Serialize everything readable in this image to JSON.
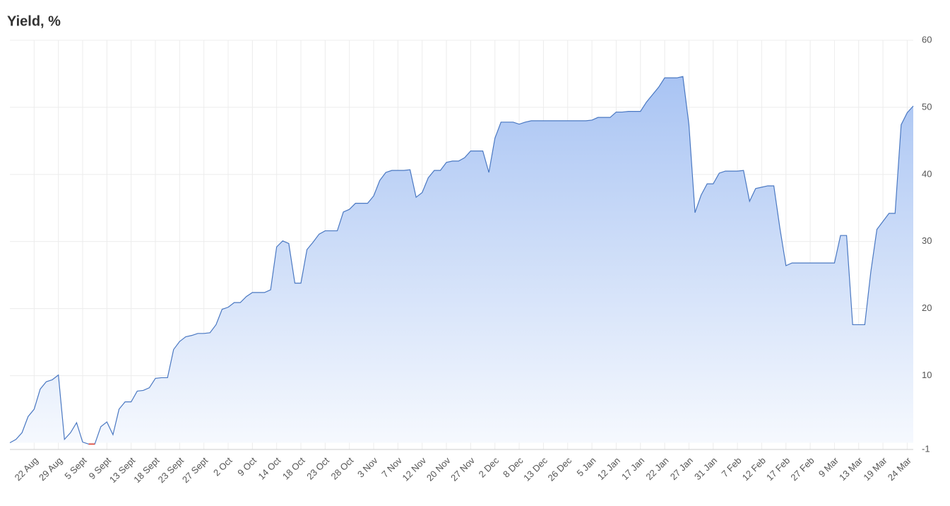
{
  "chart_data": {
    "type": "area",
    "title": "Yield, %",
    "categories": [
      null,
      null,
      null,
      null,
      "22 Aug",
      null,
      null,
      null,
      "29 Aug",
      null,
      null,
      null,
      "5 Sept",
      null,
      null,
      null,
      "9 Sept",
      null,
      null,
      null,
      "13 Sept",
      null,
      null,
      null,
      "18 Sept",
      null,
      null,
      null,
      "23 Sept",
      null,
      null,
      null,
      "27 Sept",
      null,
      null,
      null,
      "2 Oct",
      null,
      null,
      null,
      "9 Oct",
      null,
      null,
      null,
      "14 Oct",
      null,
      null,
      null,
      "18 Oct",
      null,
      null,
      null,
      "23 Oct",
      null,
      null,
      null,
      "28 Oct",
      null,
      null,
      null,
      "3 Nov",
      null,
      null,
      null,
      "7 Nov",
      null,
      null,
      null,
      "12 Nov",
      null,
      null,
      null,
      "20 Nov",
      null,
      null,
      null,
      "27 Nov",
      null,
      null,
      null,
      "2 Dec",
      null,
      null,
      null,
      "8 Dec",
      null,
      null,
      null,
      "13 Dec",
      null,
      null,
      null,
      "26 Dec",
      null,
      null,
      null,
      "5 Jan",
      null,
      null,
      null,
      "12 Jan",
      null,
      null,
      null,
      "17 Jan",
      null,
      null,
      null,
      "22 Jan",
      null,
      null,
      null,
      "27 Jan",
      null,
      null,
      null,
      "31 Jan",
      null,
      null,
      null,
      "7 Feb",
      null,
      null,
      null,
      "12 Feb",
      null,
      null,
      null,
      "17 Feb",
      null,
      null,
      null,
      "27 Feb",
      null,
      null,
      null,
      "9 Mar",
      null,
      null,
      null,
      "13 Mar",
      null,
      null,
      null,
      "19 Mar",
      null,
      null,
      null,
      "24 Mar",
      null
    ],
    "values": [
      0.0,
      0.5,
      1.5,
      3.9,
      5.0,
      8.0,
      9.1,
      9.4,
      10.1,
      0.5,
      1.5,
      3.0,
      0.1,
      -0.2,
      -0.2,
      2.4,
      3.1,
      1.2,
      5.0,
      6.1,
      6.1,
      7.7,
      7.8,
      8.2,
      9.6,
      9.7,
      9.7,
      13.9,
      15.1,
      15.8,
      16.0,
      16.3,
      16.3,
      16.4,
      17.6,
      19.9,
      20.2,
      20.9,
      20.9,
      21.8,
      22.4,
      22.4,
      22.4,
      22.8,
      29.2,
      30.1,
      29.7,
      23.8,
      23.8,
      28.8,
      29.9,
      31.1,
      31.6,
      31.6,
      31.6,
      34.4,
      34.8,
      35.7,
      35.7,
      35.7,
      36.8,
      39.1,
      40.3,
      40.6,
      40.6,
      40.6,
      40.7,
      36.6,
      37.3,
      39.5,
      40.6,
      40.6,
      41.8,
      42.0,
      42.0,
      42.5,
      43.5,
      43.5,
      43.5,
      40.3,
      45.4,
      47.8,
      47.8,
      47.8,
      47.5,
      47.8,
      48.0,
      48.0,
      48.0,
      48.0,
      48.0,
      48.0,
      48.0,
      48.0,
      48.0,
      48.0,
      48.1,
      48.5,
      48.5,
      48.5,
      49.3,
      49.3,
      49.4,
      49.4,
      49.4,
      50.8,
      51.9,
      53.0,
      54.4,
      54.4,
      54.4,
      54.6,
      47.4,
      34.3,
      36.9,
      38.6,
      38.6,
      40.2,
      40.5,
      40.5,
      40.5,
      40.6,
      36.0,
      37.9,
      38.1,
      38.3,
      38.3,
      32.0,
      26.4,
      26.8,
      26.8,
      26.8,
      26.8,
      26.8,
      26.8,
      26.8,
      26.8,
      30.9,
      30.9,
      17.6,
      17.6,
      17.6,
      25.5,
      31.8,
      33.0,
      34.2,
      34.2,
      47.4,
      49.2,
      50.2
    ],
    "color": "#4a78c2",
    "negative_color": "#e0402f",
    "fill_top": "#a9c4f3",
    "fill_bottom": "#f6f9fe",
    "ylim": [
      -1,
      60
    ],
    "yticks": [
      -1,
      10,
      20,
      30,
      40,
      50,
      60
    ],
    "grid": true,
    "y_axis_side": "right"
  }
}
